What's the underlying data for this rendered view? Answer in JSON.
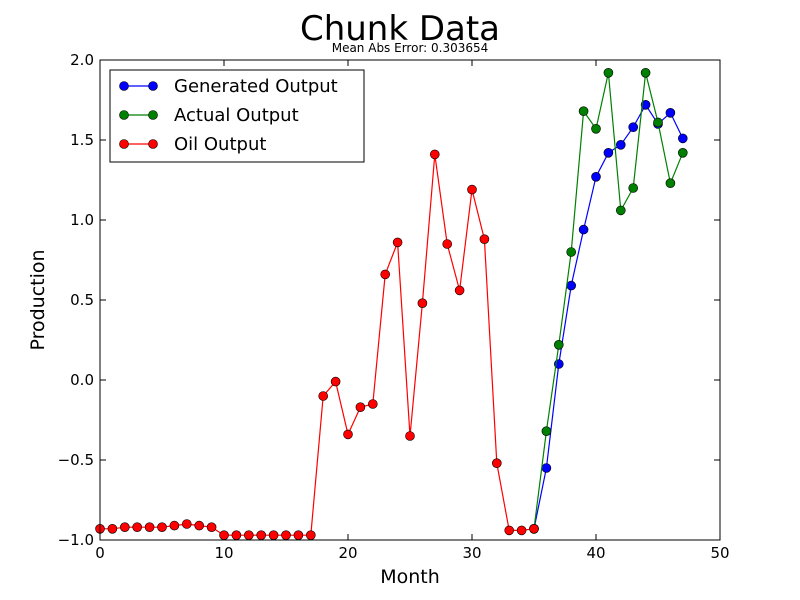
{
  "chart_data": {
    "type": "line",
    "title": "Chunk Data",
    "subtitle": "Mean Abs Error: 0.303654",
    "xlabel": "Month",
    "ylabel": "Production",
    "xlim": [
      0,
      50
    ],
    "ylim": [
      -1.0,
      2.0
    ],
    "xticks": [
      0,
      10,
      20,
      30,
      40,
      50
    ],
    "xtick_labels": [
      "0",
      "10",
      "20",
      "30",
      "40",
      "50"
    ],
    "yticks": [
      -1.0,
      -0.5,
      0.0,
      0.5,
      1.0,
      1.5,
      2.0
    ],
    "ytick_labels": [
      "−1.0",
      "−0.5",
      "0.0",
      "0.5",
      "1.0",
      "1.5",
      "2.0"
    ],
    "grid": false,
    "legend_position": "top-left",
    "series": [
      {
        "name": "Generated Output",
        "color": "#0000ff",
        "marker": "circle",
        "x": [
          35,
          36,
          37,
          38,
          39,
          40,
          41,
          42,
          43,
          44,
          45,
          46,
          47
        ],
        "y": [
          -0.93,
          -0.55,
          0.1,
          0.59,
          0.94,
          1.27,
          1.42,
          1.47,
          1.58,
          1.72,
          1.6,
          1.67,
          1.51
        ]
      },
      {
        "name": "Actual Output",
        "color": "#008000",
        "marker": "circle",
        "x": [
          35,
          36,
          37,
          38,
          39,
          40,
          41,
          42,
          43,
          44,
          45,
          46,
          47
        ],
        "y": [
          -0.93,
          -0.32,
          0.22,
          0.8,
          1.68,
          1.57,
          1.92,
          1.06,
          1.2,
          1.92,
          1.61,
          1.23,
          1.42
        ]
      },
      {
        "name": "Oil Output",
        "color": "#ff0000",
        "marker": "circle",
        "x": [
          0,
          1,
          2,
          3,
          4,
          5,
          6,
          7,
          8,
          9,
          10,
          11,
          12,
          13,
          14,
          15,
          16,
          17,
          18,
          19,
          20,
          21,
          22,
          23,
          24,
          25,
          26,
          27,
          28,
          29,
          30,
          31,
          32,
          33,
          34,
          35
        ],
        "y": [
          -0.93,
          -0.93,
          -0.92,
          -0.92,
          -0.92,
          -0.92,
          -0.91,
          -0.9,
          -0.91,
          -0.92,
          -0.97,
          -0.97,
          -0.97,
          -0.97,
          -0.97,
          -0.97,
          -0.97,
          -0.97,
          -0.1,
          -0.01,
          -0.34,
          -0.17,
          -0.15,
          0.66,
          0.86,
          -0.35,
          0.48,
          1.41,
          0.85,
          0.56,
          1.19,
          0.88,
          -0.52,
          -0.94,
          -0.94,
          -0.93
        ]
      }
    ]
  }
}
